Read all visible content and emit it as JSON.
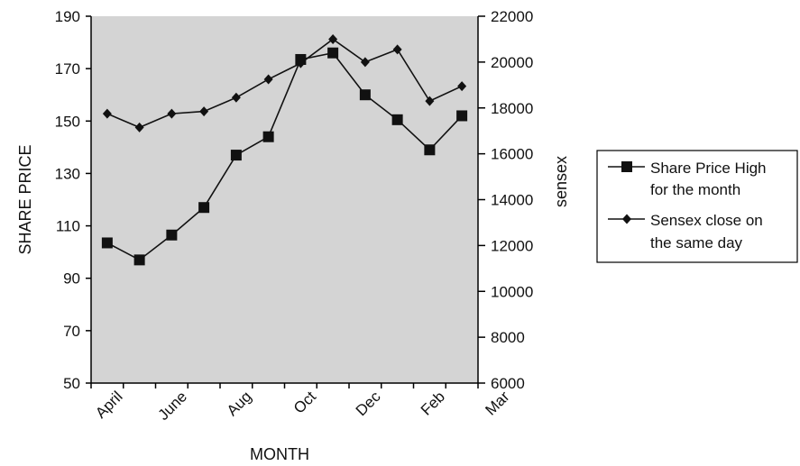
{
  "chart_data": {
    "type": "line",
    "x_tick_labels": [
      "April",
      "June",
      "Aug",
      "Oct",
      "Dec",
      "Feb",
      "Mar"
    ],
    "xlabel": "MONTH",
    "ylabel_left": "SHARE PRICE",
    "ylabel_right": "sensex",
    "ylim_left": [
      50,
      190
    ],
    "yticks_left": [
      50,
      70,
      90,
      110,
      130,
      150,
      170,
      190
    ],
    "ylim_right": [
      6000,
      22000
    ],
    "yticks_right": [
      6000,
      8000,
      10000,
      12000,
      14000,
      16000,
      18000,
      20000,
      22000
    ],
    "grid": false,
    "plot_background": "#d4d4d4",
    "legend_position": "right",
    "series": [
      {
        "name": "Share Price High for the month",
        "legend_lines": [
          "Share Price High",
          "for the month"
        ],
        "axis": "left",
        "marker": "square",
        "values": [
          103.5,
          97,
          106.5,
          117,
          137,
          144,
          173.5,
          176,
          160,
          150.5,
          139,
          152
        ]
      },
      {
        "name": "Sensex close on the same day",
        "legend_lines": [
          "Sensex close on",
          "the same day"
        ],
        "axis": "right",
        "marker": "diamond",
        "values": [
          17750,
          17150,
          17750,
          17850,
          18450,
          19250,
          19950,
          21000,
          20000,
          20550,
          18300,
          18950
        ]
      }
    ]
  }
}
